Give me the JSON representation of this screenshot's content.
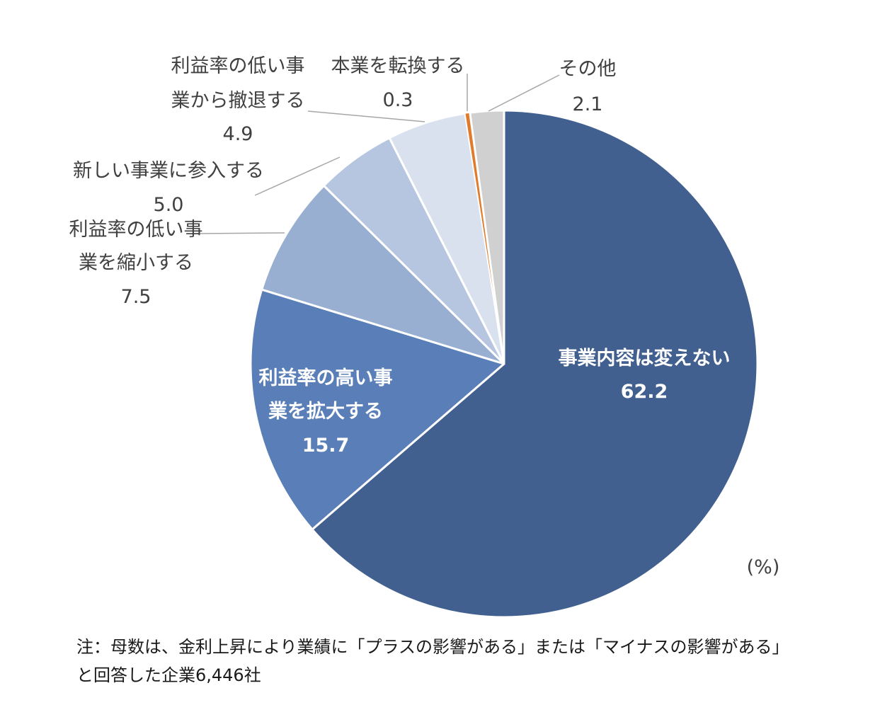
{
  "chart_data": {
    "type": "pie",
    "unit_label": "(%)",
    "slices": [
      {
        "lines": [
          "事業内容は変えない"
        ],
        "value": 62.2,
        "value_text": "62.2",
        "color": "#41608f"
      },
      {
        "lines": [
          "利益率の高い事",
          "業を拡大する"
        ],
        "value": 15.7,
        "value_text": "15.7",
        "color": "#5a7fb8"
      },
      {
        "lines": [
          "利益率の低い事",
          "業を縮小する"
        ],
        "value": 7.5,
        "value_text": "7.5",
        "color": "#98afd2"
      },
      {
        "lines": [
          "新しい事業に参入する"
        ],
        "value": 5.0,
        "value_text": "5.0",
        "color": "#b7c6e0"
      },
      {
        "lines": [
          "利益率の低い事",
          "業から撤退する"
        ],
        "value": 4.9,
        "value_text": "4.9",
        "color": "#d9e1ef"
      },
      {
        "lines": [
          "本業を転換する"
        ],
        "value": 0.3,
        "value_text": "0.3",
        "color": "#e07b2c"
      },
      {
        "lines": [
          "その他"
        ],
        "value": 2.1,
        "value_text": "2.1",
        "color": "#d0d0d0"
      }
    ]
  },
  "note": {
    "line1": "注：母数は、金利上昇により業績に「プラスの影響がある」または「マイナスの影響がある」",
    "line2": "と回答した企業6,446社"
  }
}
